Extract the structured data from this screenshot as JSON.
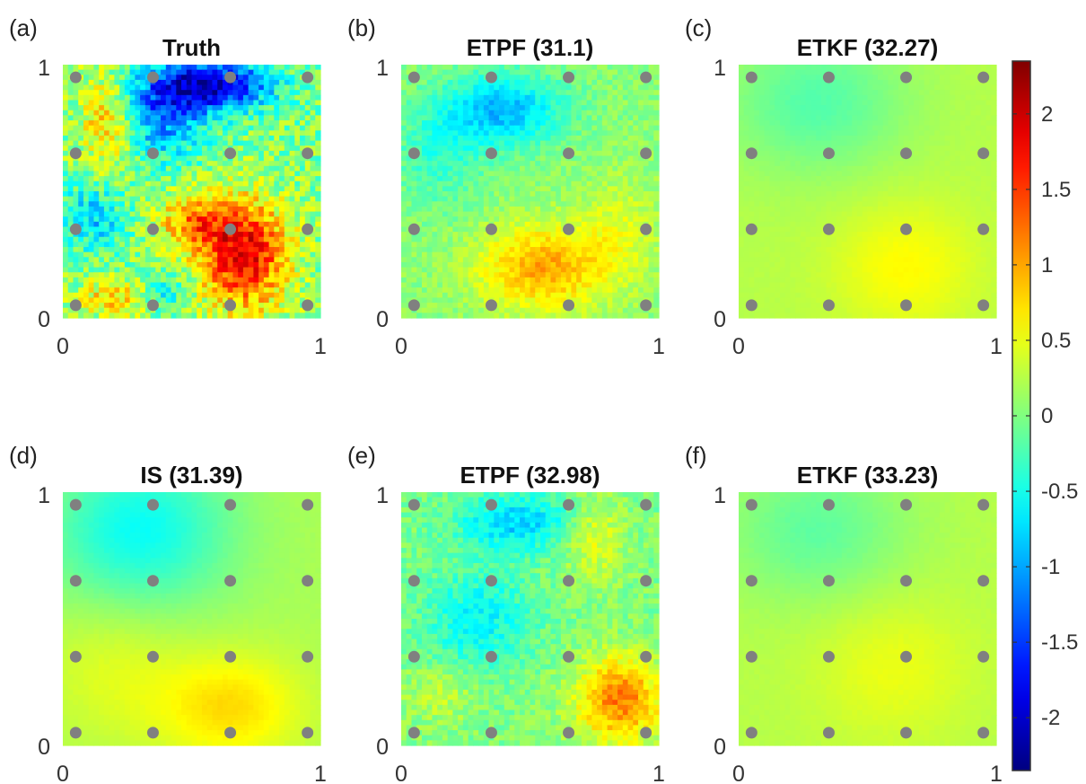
{
  "chart_data": {
    "type": "heatmap",
    "colormap": "jet",
    "color_range": [
      -2.35,
      2.35
    ],
    "colorbar": {
      "ticks": [
        2,
        1.5,
        1,
        0.5,
        0,
        -0.5,
        -1,
        -1.5,
        -2
      ],
      "labels": [
        "2",
        "1.5",
        "1",
        "0.5",
        "0",
        "-0.5",
        "-1",
        "-1.5",
        "-2"
      ]
    },
    "observation_points": {
      "color": "#808080",
      "x": [
        0.05,
        0.35,
        0.65,
        0.95
      ],
      "y": [
        0.05,
        0.35,
        0.65,
        0.95
      ]
    },
    "panels": [
      {
        "letter": "(a)",
        "title": "Truth",
        "xlim": [
          0,
          1
        ],
        "ylim": [
          0,
          1
        ],
        "x_ticks": [
          "0",
          "1"
        ],
        "y_ticks": [
          "0",
          "1"
        ],
        "field": {
          "base": 0.0,
          "noise": 0.45,
          "blobs": [
            {
              "x": 0.58,
              "y": 0.92,
              "amp": -2.0,
              "sx": 0.16,
              "sy": 0.07
            },
            {
              "x": 0.38,
              "y": 0.8,
              "amp": -1.2,
              "sx": 0.12,
              "sy": 0.12
            },
            {
              "x": 0.18,
              "y": 0.78,
              "amp": 0.9,
              "sx": 0.08,
              "sy": 0.14
            },
            {
              "x": 0.7,
              "y": 0.25,
              "amp": 1.9,
              "sx": 0.12,
              "sy": 0.15
            },
            {
              "x": 0.5,
              "y": 0.38,
              "amp": 1.0,
              "sx": 0.1,
              "sy": 0.08
            },
            {
              "x": 0.12,
              "y": 0.4,
              "amp": -0.8,
              "sx": 0.09,
              "sy": 0.09
            },
            {
              "x": 0.2,
              "y": 0.08,
              "amp": 0.8,
              "sx": 0.1,
              "sy": 0.05
            },
            {
              "x": 0.4,
              "y": 0.1,
              "amp": -0.6,
              "sx": 0.07,
              "sy": 0.05
            }
          ]
        }
      },
      {
        "letter": "(b)",
        "title": "ETPF (31.1)",
        "xlim": [
          0,
          1
        ],
        "ylim": [
          0,
          1
        ],
        "x_ticks": [
          "0",
          "1"
        ],
        "y_ticks": [
          "0",
          "1"
        ],
        "field": {
          "base": 0.05,
          "noise": 0.18,
          "blobs": [
            {
              "x": 0.4,
              "y": 0.82,
              "amp": -0.95,
              "sx": 0.16,
              "sy": 0.1
            },
            {
              "x": 0.15,
              "y": 0.65,
              "amp": -0.4,
              "sx": 0.12,
              "sy": 0.15
            },
            {
              "x": 0.55,
              "y": 0.2,
              "amp": 0.95,
              "sx": 0.18,
              "sy": 0.12
            },
            {
              "x": 0.85,
              "y": 0.35,
              "amp": 0.35,
              "sx": 0.1,
              "sy": 0.15
            }
          ]
        }
      },
      {
        "letter": "(c)",
        "title": "ETKF (32.27)",
        "xlim": [
          0,
          1
        ],
        "ylim": [
          0,
          1
        ],
        "x_ticks": [
          "0",
          "1"
        ],
        "y_ticks": [
          "0",
          "1"
        ],
        "field": {
          "base": 0.25,
          "noise": 0.02,
          "blobs": [
            {
              "x": 0.3,
              "y": 0.85,
              "amp": -0.45,
              "sx": 0.25,
              "sy": 0.2
            },
            {
              "x": 0.65,
              "y": 0.2,
              "amp": 0.35,
              "sx": 0.2,
              "sy": 0.18
            }
          ]
        }
      },
      {
        "letter": "(d)",
        "title": "IS (31.39)",
        "xlim": [
          0,
          1
        ],
        "ylim": [
          0,
          1
        ],
        "x_ticks": [
          "0",
          "1"
        ],
        "y_ticks": [
          "0",
          "1"
        ],
        "field": {
          "base": 0.2,
          "noise": 0.02,
          "blobs": [
            {
              "x": 0.3,
              "y": 0.85,
              "amp": -0.75,
              "sx": 0.25,
              "sy": 0.22
            },
            {
              "x": 0.65,
              "y": 0.15,
              "amp": 0.55,
              "sx": 0.2,
              "sy": 0.15
            },
            {
              "x": 0.2,
              "y": 0.3,
              "amp": 0.25,
              "sx": 0.2,
              "sy": 0.2
            }
          ]
        }
      },
      {
        "letter": "(e)",
        "title": "ETPF (32.98)",
        "xlim": [
          0,
          1
        ],
        "ylim": [
          0,
          1
        ],
        "x_ticks": [
          "0",
          "1"
        ],
        "y_ticks": [
          "0",
          "1"
        ],
        "field": {
          "base": 0.0,
          "noise": 0.22,
          "blobs": [
            {
              "x": 0.45,
              "y": 0.88,
              "amp": -0.8,
              "sx": 0.16,
              "sy": 0.08
            },
            {
              "x": 0.3,
              "y": 0.5,
              "amp": -0.6,
              "sx": 0.14,
              "sy": 0.14
            },
            {
              "x": 0.85,
              "y": 0.18,
              "amp": 1.2,
              "sx": 0.12,
              "sy": 0.12
            },
            {
              "x": 0.75,
              "y": 0.82,
              "amp": 0.5,
              "sx": 0.08,
              "sy": 0.12
            },
            {
              "x": 0.15,
              "y": 0.2,
              "amp": 0.3,
              "sx": 0.1,
              "sy": 0.08
            }
          ]
        }
      },
      {
        "letter": "(f)",
        "title": "ETKF (33.23)",
        "xlim": [
          0,
          1
        ],
        "ylim": [
          0,
          1
        ],
        "x_ticks": [
          "0",
          "1"
        ],
        "y_ticks": [
          "0",
          "1"
        ],
        "field": {
          "base": 0.25,
          "noise": 0.02,
          "blobs": [
            {
              "x": 0.3,
              "y": 0.85,
              "amp": -0.4,
              "sx": 0.25,
              "sy": 0.2
            },
            {
              "x": 0.6,
              "y": 0.3,
              "amp": 0.25,
              "sx": 0.22,
              "sy": 0.2
            }
          ]
        }
      }
    ]
  }
}
